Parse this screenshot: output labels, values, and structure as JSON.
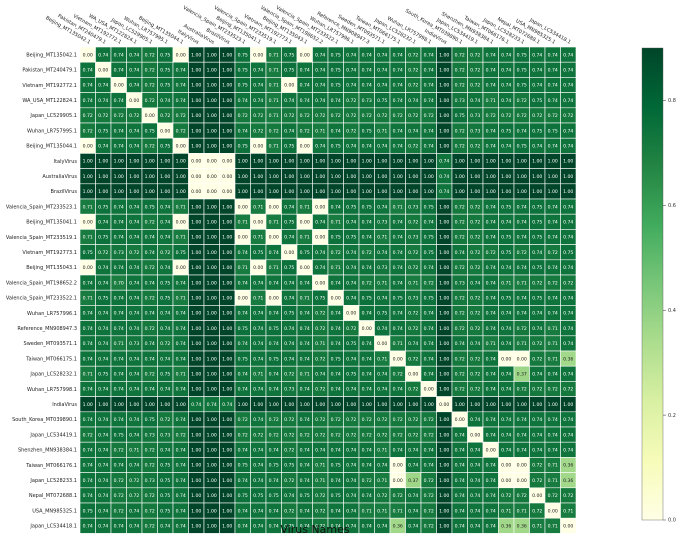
{
  "chart_data": {
    "type": "heatmap",
    "xlabel": "Virus Names",
    "ylabel": "",
    "colormap": "YlGn",
    "colorbar": {
      "range": [
        0.0,
        0.9
      ],
      "ticks": [
        "0.0",
        "0.2",
        "0.4",
        "0.6",
        "0.8"
      ]
    },
    "labels": [
      "Beijing_MT135042.1",
      "Pakistan_MT240479.1",
      "Vietnam_MT192772.1",
      "WA_USA_MT122824.1",
      "Japan_LC529905.1",
      "Wuhan_LR757995.1",
      "Beijing_MT135044.1",
      "ItalyVirus",
      "AustraliaVirus",
      "BrazilVirus",
      "Valencia_Spain_MT233523.1",
      "Beijing_MT135041.1",
      "Valencia_Spain_MT233519.1",
      "Vietnam_MT192773.1",
      "Beijing_MT135043.1",
      "Valencia_Spain_MT198652.2",
      "Valencia_Spain_MT233522.1",
      "Wuhan_LR757996.1",
      "Reference_MN908947.3",
      "Sweden_MT093571.1",
      "Taiwan_MT066175.1",
      "Japan_LC528232.1",
      "Wuhan_LR757998.1",
      "IndiaVirus",
      "South_Korea_MT039890.1",
      "Japan_LC534419.1",
      "Shenzhen_MN938384.1",
      "Taiwan_MT066176.1",
      "Japan_LC528233.1",
      "Nepal_MT072688.1",
      "USA_MN985325.1",
      "Japan_LC534418.1"
    ],
    "matrix": [
      [
        0.0,
        0.74,
        0.74,
        0.74,
        0.72,
        0.75,
        0.0,
        1.0,
        1.0,
        1.0,
        0.75,
        0.0,
        0.71,
        0.75,
        0.0,
        0.74,
        0.75,
        0.74,
        0.74,
        0.74,
        0.74,
        0.72,
        0.74,
        1.0,
        0.72,
        0.72,
        0.74,
        0.74,
        0.75,
        0.74,
        0.74,
        0.74
      ],
      [
        0.74,
        0.0,
        0.74,
        0.74,
        0.72,
        0.75,
        0.74,
        1.0,
        1.0,
        1.0,
        0.75,
        0.74,
        0.71,
        0.75,
        0.74,
        0.74,
        0.75,
        0.74,
        0.74,
        0.74,
        0.74,
        0.72,
        0.74,
        1.0,
        0.72,
        0.72,
        0.74,
        0.74,
        0.75,
        0.74,
        0.74,
        0.74
      ],
      [
        0.74,
        0.74,
        0.0,
        0.74,
        0.72,
        0.75,
        0.74,
        1.0,
        1.0,
        1.0,
        0.75,
        0.74,
        0.71,
        0.0,
        0.74,
        0.74,
        0.75,
        0.74,
        0.74,
        0.74,
        0.74,
        0.72,
        0.74,
        1.0,
        0.72,
        0.72,
        0.74,
        0.74,
        0.75,
        0.74,
        0.74,
        0.74
      ],
      [
        0.74,
        0.74,
        0.74,
        0.0,
        0.72,
        0.74,
        0.74,
        1.0,
        1.0,
        1.0,
        0.74,
        0.74,
        0.71,
        0.74,
        0.74,
        0.74,
        0.74,
        0.72,
        0.73,
        0.75,
        0.74,
        0.74,
        0.74,
        1.0,
        0.73,
        0.74,
        0.71,
        0.74,
        0.72,
        0.75,
        0.74,
        0.74
      ],
      [
        0.72,
        0.72,
        0.72,
        0.72,
        0.0,
        0.72,
        0.72,
        1.0,
        1.0,
        1.0,
        0.72,
        0.72,
        0.71,
        0.72,
        0.72,
        0.72,
        0.72,
        0.72,
        0.72,
        0.72,
        0.72,
        0.72,
        0.72,
        1.0,
        0.75,
        0.73,
        0.72,
        0.72,
        0.72,
        0.72,
        0.72,
        0.72
      ],
      [
        0.72,
        0.75,
        0.74,
        0.74,
        0.75,
        0.0,
        0.72,
        1.0,
        1.0,
        1.0,
        0.74,
        0.72,
        0.72,
        0.74,
        0.72,
        0.71,
        0.74,
        0.72,
        0.75,
        0.71,
        0.74,
        0.74,
        0.74,
        1.0,
        0.72,
        0.73,
        0.74,
        0.75,
        0.74,
        0.75,
        0.75,
        0.74
      ],
      [
        0.0,
        0.74,
        0.74,
        0.74,
        0.72,
        0.75,
        0.0,
        1.0,
        1.0,
        1.0,
        0.75,
        0.0,
        0.71,
        0.75,
        0.0,
        0.74,
        0.75,
        0.74,
        0.74,
        0.74,
        0.74,
        0.72,
        0.74,
        1.0,
        0.72,
        0.72,
        0.74,
        0.74,
        0.75,
        0.74,
        0.74,
        0.74
      ],
      [
        1.0,
        1.0,
        1.0,
        1.0,
        1.0,
        1.0,
        1.0,
        0.0,
        0.0,
        0.0,
        1.0,
        1.0,
        1.0,
        1.0,
        1.0,
        1.0,
        1.0,
        1.0,
        1.0,
        1.0,
        1.0,
        1.0,
        1.0,
        0.74,
        1.0,
        1.0,
        1.0,
        1.0,
        1.0,
        1.0,
        1.0,
        1.0
      ],
      [
        1.0,
        1.0,
        1.0,
        1.0,
        1.0,
        1.0,
        1.0,
        0.0,
        0.0,
        0.0,
        1.0,
        1.0,
        1.0,
        1.0,
        1.0,
        1.0,
        1.0,
        1.0,
        1.0,
        1.0,
        1.0,
        1.0,
        1.0,
        0.74,
        1.0,
        1.0,
        1.0,
        1.0,
        1.0,
        1.0,
        1.0,
        1.0
      ],
      [
        1.0,
        1.0,
        1.0,
        1.0,
        1.0,
        1.0,
        1.0,
        0.0,
        0.0,
        0.0,
        1.0,
        1.0,
        1.0,
        1.0,
        1.0,
        1.0,
        1.0,
        1.0,
        1.0,
        1.0,
        1.0,
        1.0,
        1.0,
        0.74,
        1.0,
        1.0,
        1.0,
        1.0,
        1.0,
        1.0,
        1.0,
        1.0
      ],
      [
        0.71,
        0.75,
        0.74,
        0.74,
        0.75,
        0.74,
        0.71,
        1.0,
        1.0,
        1.0,
        0.0,
        0.71,
        0.0,
        0.74,
        0.71,
        0.0,
        0.74,
        0.75,
        0.75,
        0.74,
        0.71,
        0.73,
        0.75,
        1.0,
        0.72,
        0.72,
        0.74,
        0.75,
        0.74,
        0.75,
        0.74,
        0.74
      ],
      [
        0.0,
        0.74,
        0.74,
        0.74,
        0.72,
        0.74,
        0.0,
        1.0,
        1.0,
        1.0,
        0.71,
        0.0,
        0.71,
        0.75,
        0.0,
        0.74,
        0.71,
        0.74,
        0.74,
        0.73,
        0.74,
        0.72,
        0.74,
        1.0,
        0.72,
        0.72,
        0.74,
        0.74,
        0.74,
        0.75,
        0.74,
        0.74
      ],
      [
        0.71,
        0.75,
        0.74,
        0.74,
        0.74,
        0.74,
        0.71,
        1.0,
        1.0,
        1.0,
        0.0,
        0.71,
        0.0,
        0.74,
        0.71,
        0.0,
        0.75,
        0.75,
        0.74,
        0.71,
        0.74,
        0.73,
        0.75,
        1.0,
        0.72,
        0.72,
        0.74,
        0.75,
        0.74,
        0.75,
        0.74,
        0.74
      ],
      [
        0.75,
        0.72,
        0.73,
        0.72,
        0.74,
        0.72,
        0.75,
        1.0,
        1.0,
        1.0,
        0.74,
        0.75,
        0.74,
        0.0,
        0.75,
        0.74,
        0.72,
        0.74,
        0.72,
        0.74,
        0.74,
        0.72,
        0.75,
        1.0,
        0.74,
        0.72,
        0.72,
        0.75,
        0.72,
        0.74,
        0.72,
        0.75
      ],
      [
        0.0,
        0.74,
        0.74,
        0.74,
        0.72,
        0.74,
        0.0,
        1.0,
        1.0,
        1.0,
        0.71,
        0.0,
        0.71,
        0.75,
        0.0,
        0.74,
        0.71,
        0.74,
        0.74,
        0.73,
        0.74,
        0.72,
        0.74,
        1.0,
        0.72,
        0.72,
        0.74,
        0.74,
        0.74,
        0.75,
        0.74,
        0.74
      ],
      [
        0.74,
        0.74,
        0.7,
        0.74,
        0.74,
        0.75,
        0.74,
        1.0,
        1.0,
        1.0,
        0.74,
        0.74,
        0.74,
        0.74,
        0.74,
        0.0,
        0.74,
        0.74,
        0.72,
        0.71,
        0.74,
        0.71,
        0.72,
        1.0,
        0.73,
        0.74,
        0.74,
        0.71,
        0.71,
        0.72,
        0.72,
        0.72
      ],
      [
        0.71,
        0.75,
        0.74,
        0.74,
        0.72,
        0.75,
        0.71,
        1.0,
        1.0,
        1.0,
        0.0,
        0.71,
        0.0,
        0.74,
        0.71,
        0.75,
        0.0,
        0.74,
        0.75,
        0.74,
        0.75,
        0.73,
        0.75,
        1.0,
        0.72,
        0.72,
        0.74,
        0.75,
        0.74,
        0.75,
        0.74,
        0.74
      ],
      [
        0.74,
        0.74,
        0.74,
        0.74,
        0.74,
        0.74,
        0.74,
        1.0,
        1.0,
        1.0,
        0.74,
        0.74,
        0.74,
        0.75,
        0.74,
        0.72,
        0.74,
        0.0,
        0.74,
        0.75,
        0.74,
        0.72,
        0.74,
        1.0,
        0.72,
        0.72,
        0.74,
        0.74,
        0.74,
        0.74,
        0.74,
        0.74
      ],
      [
        0.74,
        0.74,
        0.74,
        0.74,
        0.72,
        0.74,
        0.74,
        1.0,
        1.0,
        1.0,
        0.75,
        0.74,
        0.75,
        0.74,
        0.74,
        0.72,
        0.74,
        0.72,
        0.0,
        0.74,
        0.74,
        0.72,
        0.74,
        1.0,
        0.72,
        0.72,
        0.74,
        0.74,
        0.72,
        0.74,
        0.71,
        0.74
      ],
      [
        0.74,
        0.74,
        0.71,
        0.73,
        0.74,
        0.72,
        0.74,
        1.0,
        1.0,
        1.0,
        0.74,
        0.74,
        0.74,
        0.74,
        0.74,
        0.71,
        0.74,
        0.75,
        0.74,
        0.0,
        0.71,
        0.74,
        0.74,
        1.0,
        0.74,
        0.74,
        0.71,
        0.74,
        0.71,
        0.72,
        0.71,
        0.74
      ],
      [
        0.74,
        0.74,
        0.74,
        0.74,
        0.74,
        0.74,
        0.74,
        1.0,
        1.0,
        1.0,
        0.75,
        0.74,
        0.75,
        0.74,
        0.74,
        0.72,
        0.75,
        0.74,
        0.74,
        0.71,
        0.0,
        0.72,
        0.74,
        1.0,
        0.72,
        0.72,
        0.74,
        0.0,
        0.0,
        0.72,
        0.71,
        0.36
      ],
      [
        0.71,
        0.75,
        0.74,
        0.74,
        0.72,
        0.75,
        0.71,
        1.0,
        1.0,
        1.0,
        0.74,
        0.71,
        0.74,
        0.72,
        0.71,
        0.74,
        0.74,
        0.75,
        0.74,
        0.74,
        0.72,
        0.0,
        0.74,
        1.0,
        0.72,
        0.72,
        0.74,
        0.74,
        0.37,
        0.74,
        0.74,
        0.74
      ],
      [
        0.74,
        0.74,
        0.74,
        0.74,
        0.74,
        0.74,
        0.74,
        1.0,
        1.0,
        1.0,
        0.74,
        0.74,
        0.74,
        0.73,
        0.74,
        0.72,
        0.74,
        0.74,
        0.74,
        0.74,
        0.74,
        0.72,
        0.0,
        1.0,
        0.72,
        0.72,
        0.74,
        0.74,
        0.72,
        0.72,
        0.72,
        0.72
      ],
      [
        1.0,
        1.0,
        1.0,
        1.0,
        1.0,
        1.0,
        1.0,
        0.74,
        0.74,
        0.74,
        1.0,
        1.0,
        1.0,
        1.0,
        1.0,
        1.0,
        1.0,
        1.0,
        1.0,
        1.0,
        1.0,
        1.0,
        1.0,
        0.0,
        1.0,
        1.0,
        1.0,
        1.0,
        1.0,
        1.0,
        1.0,
        1.0
      ],
      [
        0.74,
        0.74,
        0.74,
        0.74,
        0.75,
        0.72,
        0.74,
        1.0,
        1.0,
        1.0,
        0.72,
        0.74,
        0.72,
        0.72,
        0.74,
        0.72,
        0.72,
        0.72,
        0.72,
        0.72,
        0.72,
        0.72,
        0.72,
        1.0,
        0.0,
        0.74,
        0.74,
        0.74,
        0.74,
        0.74,
        0.74,
        0.74
      ],
      [
        0.72,
        0.74,
        0.75,
        0.74,
        0.73,
        0.73,
        0.72,
        1.0,
        1.0,
        1.0,
        0.72,
        0.72,
        0.72,
        0.72,
        0.72,
        0.72,
        0.72,
        0.72,
        0.72,
        0.72,
        0.72,
        0.72,
        0.72,
        1.0,
        0.74,
        0.0,
        0.74,
        0.74,
        0.74,
        0.74,
        0.74,
        0.74
      ],
      [
        0.74,
        0.74,
        0.72,
        0.71,
        0.72,
        0.74,
        0.74,
        1.0,
        1.0,
        1.0,
        0.74,
        0.74,
        0.74,
        0.72,
        0.74,
        0.74,
        0.74,
        0.74,
        0.74,
        0.71,
        0.74,
        0.74,
        0.74,
        1.0,
        0.74,
        0.74,
        0.0,
        0.74,
        0.74,
        0.74,
        0.74,
        0.74
      ],
      [
        0.74,
        0.74,
        0.74,
        0.74,
        0.72,
        0.75,
        0.74,
        1.0,
        1.0,
        1.0,
        0.75,
        0.74,
        0.75,
        0.75,
        0.74,
        0.71,
        0.75,
        0.74,
        0.74,
        0.74,
        0.0,
        0.74,
        0.74,
        1.0,
        0.74,
        0.74,
        0.74,
        0.0,
        0.0,
        0.72,
        0.71,
        0.36
      ],
      [
        0.74,
        0.74,
        0.72,
        0.72,
        0.73,
        0.75,
        0.74,
        1.0,
        1.0,
        1.0,
        0.74,
        0.74,
        0.74,
        0.72,
        0.74,
        0.71,
        0.74,
        0.74,
        0.72,
        0.71,
        0.0,
        0.37,
        0.72,
        1.0,
        0.74,
        0.74,
        0.74,
        0.0,
        0.0,
        0.72,
        0.71,
        0.36
      ],
      [
        0.74,
        0.74,
        0.72,
        0.72,
        0.72,
        0.75,
        0.74,
        1.0,
        1.0,
        1.0,
        0.75,
        0.75,
        0.75,
        0.74,
        0.75,
        0.72,
        0.75,
        0.74,
        0.74,
        0.72,
        0.72,
        0.74,
        0.72,
        1.0,
        0.74,
        0.74,
        0.74,
        0.72,
        0.72,
        0.0,
        0.72,
        0.72
      ],
      [
        0.75,
        0.74,
        0.72,
        0.74,
        0.72,
        0.75,
        0.74,
        1.0,
        1.0,
        1.0,
        0.74,
        0.74,
        0.74,
        0.72,
        0.74,
        0.72,
        0.74,
        0.74,
        0.71,
        0.71,
        0.71,
        0.74,
        0.72,
        1.0,
        0.74,
        0.74,
        0.74,
        0.71,
        0.71,
        0.72,
        0.0,
        0.71
      ],
      [
        0.74,
        0.74,
        0.74,
        0.74,
        0.72,
        0.74,
        0.74,
        1.0,
        1.0,
        1.0,
        0.74,
        0.74,
        0.74,
        0.75,
        0.74,
        0.72,
        0.74,
        0.74,
        0.74,
        0.74,
        0.36,
        0.74,
        0.72,
        1.0,
        0.74,
        0.74,
        0.74,
        0.36,
        0.36,
        0.71,
        0.71,
        0.0
      ]
    ]
  }
}
